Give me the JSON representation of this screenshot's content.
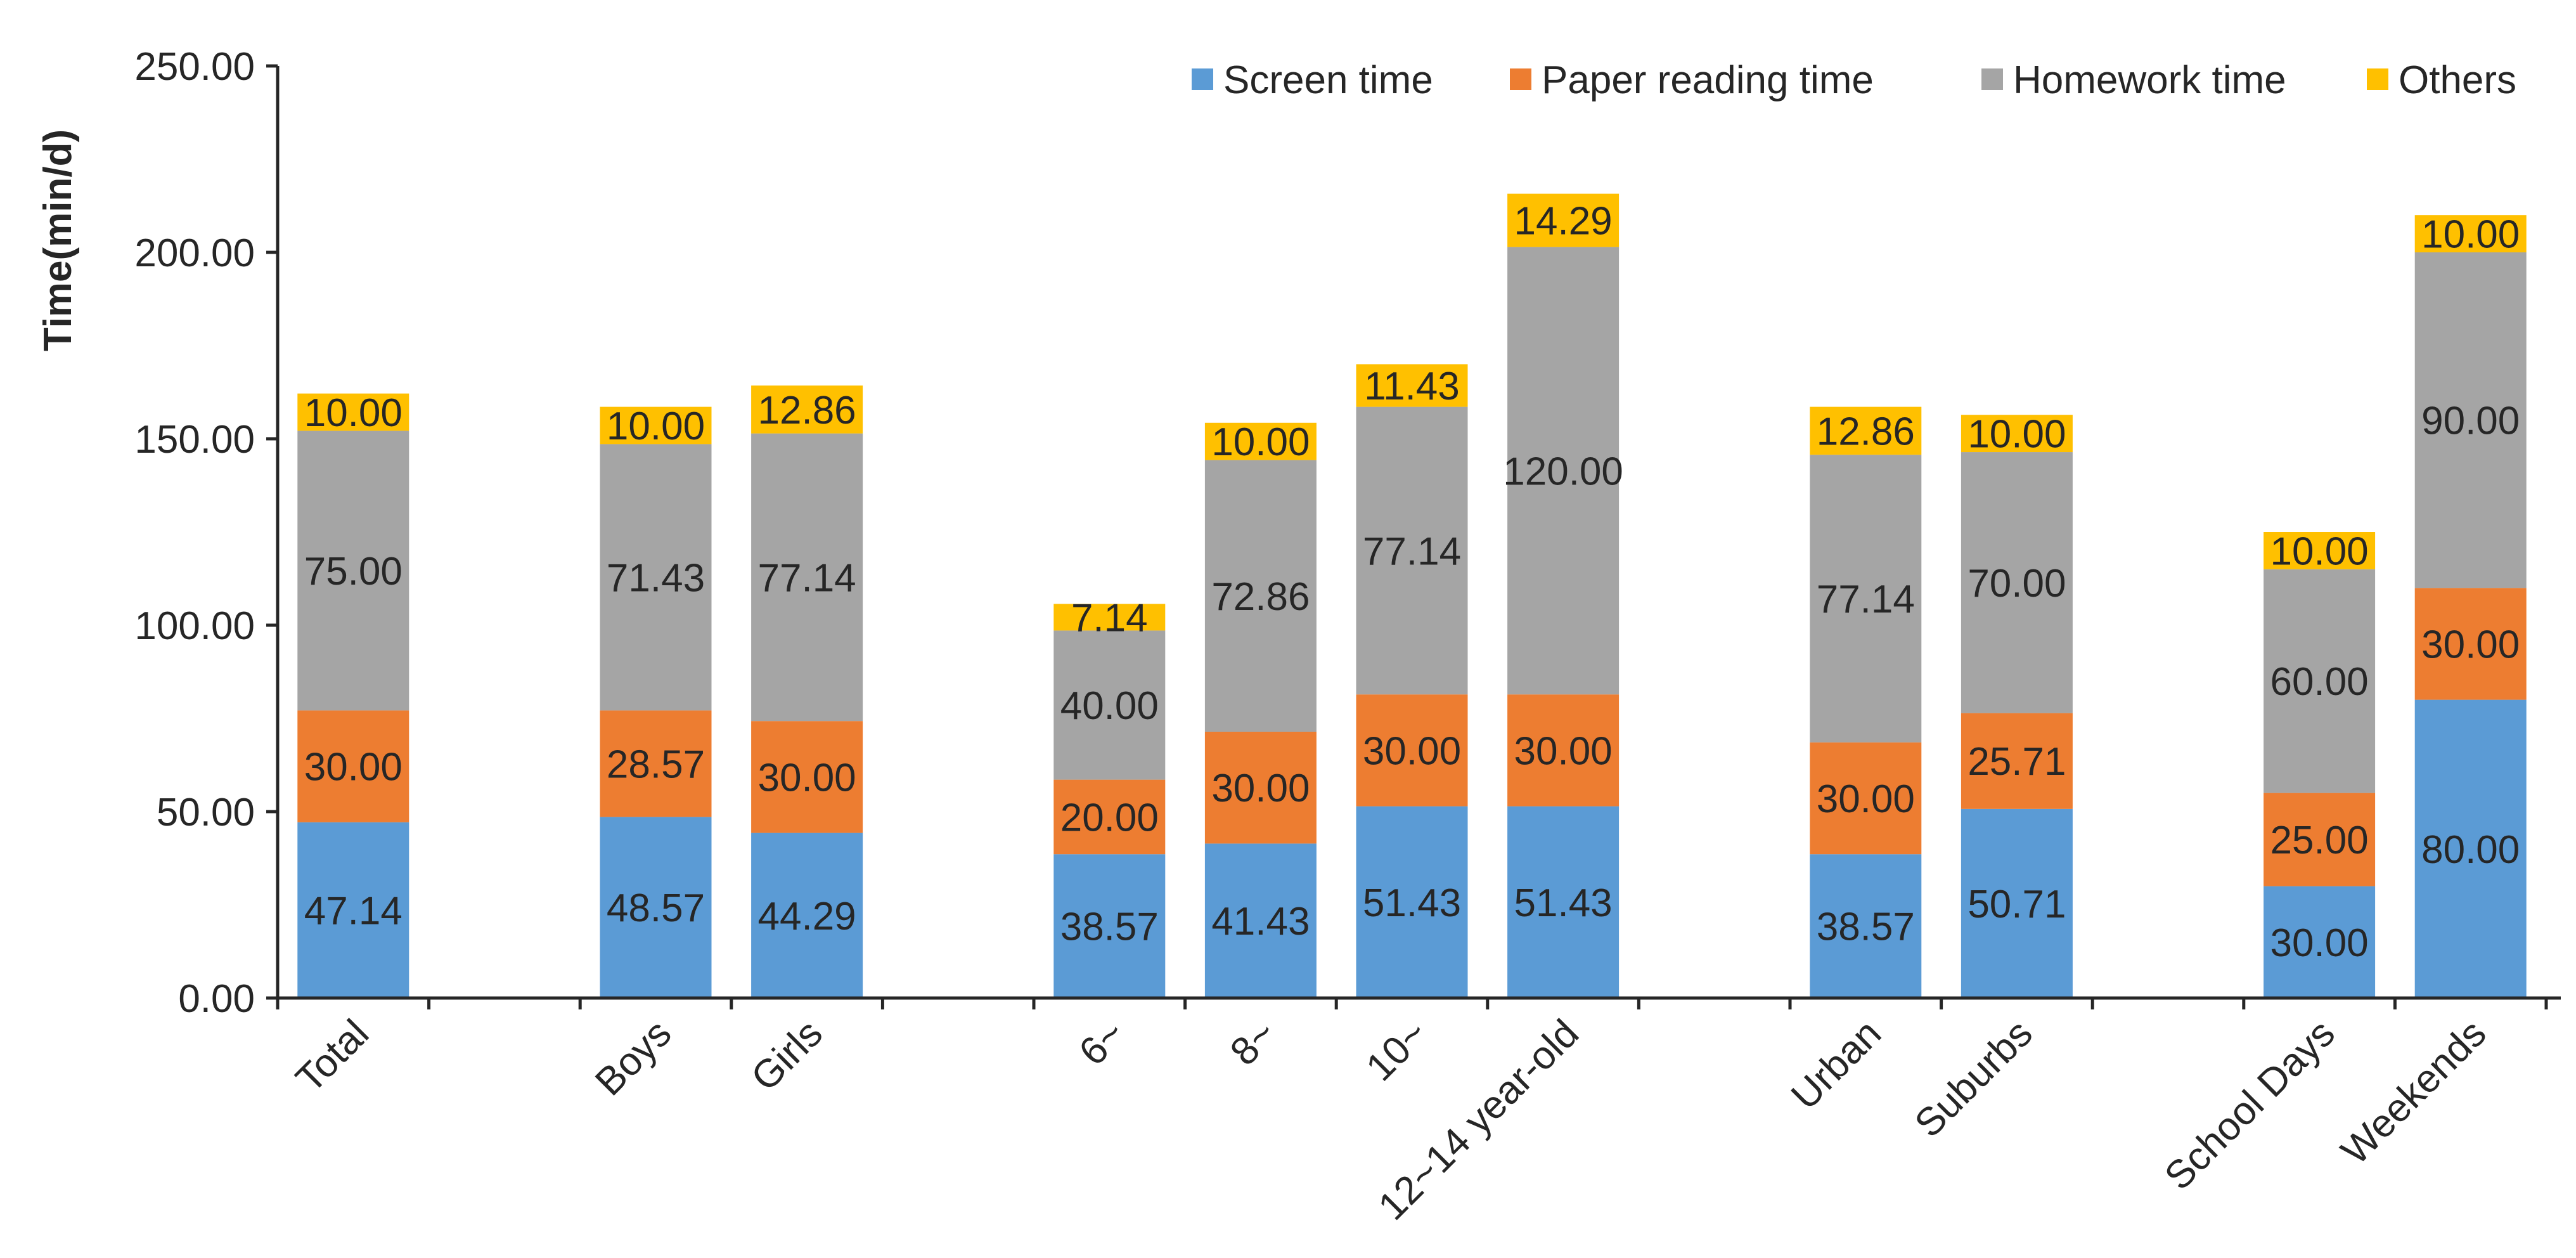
{
  "chart_data": {
    "type": "bar",
    "stacked": true,
    "ylabel": "Time(min/d)",
    "ylim": [
      0,
      250
    ],
    "yticks": [
      "0.00",
      "50.00",
      "100.00",
      "150.00",
      "200.00",
      "250.00"
    ],
    "grid": false,
    "legend_position": "top-right",
    "slots": [
      "Total",
      "",
      "Boys",
      "Girls",
      "",
      "6~",
      "8~",
      "10~",
      "12~14 year-old",
      "",
      "Urban",
      "Suburbs",
      "",
      "School Days",
      "Weekends"
    ],
    "categories": [
      "Total",
      "Boys",
      "Girls",
      "6~",
      "8~",
      "10~",
      "12~14 year-old",
      "Urban",
      "Suburbs",
      "School Days",
      "Weekends"
    ],
    "series": [
      {
        "name": "Screen time",
        "color": "#5B9BD5",
        "values": [
          47.14,
          48.57,
          44.29,
          38.57,
          41.43,
          51.43,
          51.43,
          38.57,
          50.71,
          30.0,
          80.0
        ],
        "labels": [
          "47.14",
          "48.57",
          "44.29",
          "38.57",
          "41.43",
          "51.43",
          "51.43",
          "38.57",
          "50.71",
          "30.00",
          "80.00"
        ]
      },
      {
        "name": "Paper reading time",
        "color": "#ED7D31",
        "values": [
          30.0,
          28.57,
          30.0,
          20.0,
          30.0,
          30.0,
          30.0,
          30.0,
          25.71,
          25.0,
          30.0
        ],
        "labels": [
          "30.00",
          "28.57",
          "30.00",
          "20.00",
          "30.00",
          "30.00",
          "30.00",
          "30.00",
          "25.71",
          "25.00",
          "30.00"
        ]
      },
      {
        "name": "Homework time",
        "color": "#A5A5A5",
        "values": [
          75.0,
          71.43,
          77.14,
          40.0,
          72.86,
          77.14,
          120.0,
          77.14,
          70.0,
          60.0,
          90.0
        ],
        "labels": [
          "75.00",
          "71.43",
          "77.14",
          "40.00",
          "72.86",
          "77.14",
          "120.00",
          "77.14",
          "70.00",
          "60.00",
          "90.00"
        ]
      },
      {
        "name": "Others",
        "color": "#FFC000",
        "values": [
          10.0,
          10.0,
          12.86,
          7.14,
          10.0,
          11.43,
          14.29,
          12.86,
          10.0,
          10.0,
          10.0
        ],
        "labels": [
          "10.00",
          "10.00",
          "12.86",
          "7.14",
          "10.00",
          "11.43",
          "14.29",
          "12.86",
          "10.00",
          "10.00",
          "10.00"
        ]
      }
    ]
  }
}
